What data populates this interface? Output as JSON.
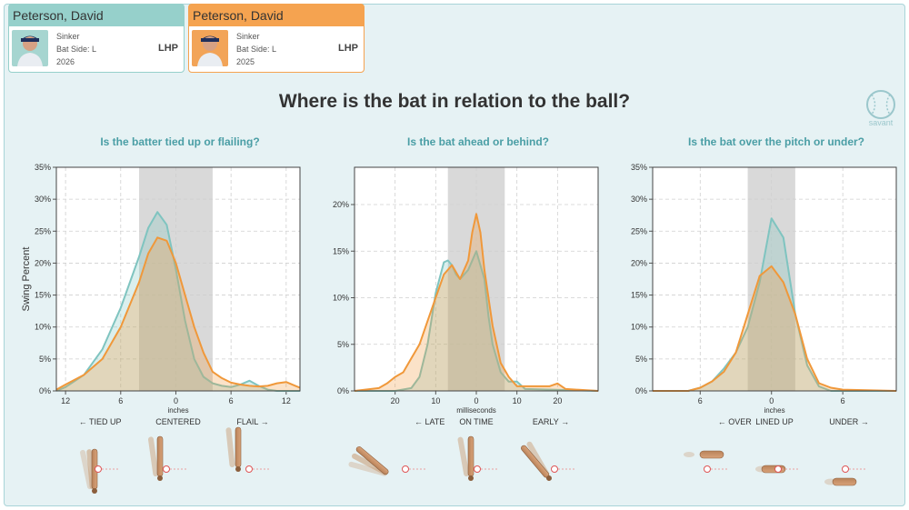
{
  "players": [
    {
      "name": "Peterson, David",
      "pitch": "Sinker",
      "bat_side": "Bat Side: L",
      "year": "2026",
      "hand": "LHP",
      "color": "#96d0cb"
    },
    {
      "name": "Peterson, David",
      "pitch": "Sinker",
      "bat_side": "Bat Side: L",
      "year": "2025",
      "hand": "LHP",
      "color": "#f5a350"
    }
  ],
  "title": "Where is the bat in relation to the ball?",
  "logo_text": "savant",
  "colors": {
    "series_2026": "#7fc4c0",
    "series_2025": "#f0983a",
    "shade": "#d9d9d9",
    "accent": "#4a9ea5"
  },
  "chart_data": [
    {
      "type": "area",
      "title": "Is the batter tied up or flailing?",
      "ylabel": "Swing Percent",
      "xunit": "inches",
      "xlim": [
        13,
        -13.5
      ],
      "ylim": [
        0,
        35
      ],
      "yticks": [
        "0%",
        "5%",
        "10%",
        "15%",
        "20%",
        "25%",
        "30%",
        "35%"
      ],
      "xticks": [
        {
          "v": 12,
          "t": "12"
        },
        {
          "v": 6,
          "t": "6"
        },
        {
          "v": 0,
          "t": "0"
        },
        {
          "v": -6,
          "t": "6"
        },
        {
          "v": -12,
          "t": "12"
        }
      ],
      "shaded": [
        4,
        -4
      ],
      "labels": {
        "left": "← TIED UP",
        "center": "CENTERED",
        "right": "FLAIL →"
      },
      "series": [
        {
          "name": "2026",
          "x": [
            13,
            12,
            10,
            8,
            6,
            4,
            3,
            2,
            1,
            0,
            -1,
            -2,
            -3,
            -4,
            -5,
            -6,
            -7,
            -8,
            -9,
            -10,
            -11,
            -13.5
          ],
          "values": [
            0,
            0.6,
            2.5,
            6.5,
            13,
            21,
            25.5,
            28,
            26,
            19,
            11,
            5,
            2.2,
            1.2,
            0.8,
            0.6,
            1,
            1.6,
            0.8,
            0.2,
            0,
            0
          ]
        },
        {
          "name": "2025",
          "x": [
            13,
            12,
            10,
            8,
            6,
            4,
            3,
            2,
            1,
            0,
            -1,
            -2,
            -3,
            -4,
            -5,
            -6,
            -7,
            -8,
            -9,
            -10,
            -11,
            -12,
            -13,
            -13.5
          ],
          "values": [
            0.2,
            1,
            2.5,
            5,
            10,
            17,
            21.5,
            24,
            23.5,
            20,
            15,
            10,
            6,
            3,
            2,
            1.3,
            1,
            0.8,
            0.7,
            0.8,
            1.2,
            1.4,
            0.8,
            0.5
          ]
        }
      ]
    },
    {
      "type": "area",
      "title": "Is the bat ahead or behind?",
      "xunit": "milliseconds",
      "xlim": [
        30,
        -30
      ],
      "ylim": [
        0,
        24
      ],
      "yticks": [
        "0%",
        "5%",
        "10%",
        "15%",
        "20%"
      ],
      "ytickvals": [
        0,
        5,
        10,
        15,
        20
      ],
      "xticks": [
        {
          "v": 20,
          "t": "20"
        },
        {
          "v": 10,
          "t": "10"
        },
        {
          "v": 0,
          "t": "0"
        },
        {
          "v": -10,
          "t": "10"
        },
        {
          "v": -20,
          "t": "20"
        }
      ],
      "shaded": [
        7,
        -7
      ],
      "labels": {
        "left": "← LATE",
        "center": "ON TIME",
        "right": "EARLY →"
      },
      "series": [
        {
          "name": "2026",
          "x": [
            30,
            20,
            16,
            14,
            12,
            10,
            8,
            7,
            6,
            5,
            4,
            2,
            0,
            -2,
            -3,
            -4,
            -6,
            -8,
            -10,
            -12,
            -30
          ],
          "values": [
            0,
            0,
            0.3,
            1.5,
            5,
            10.5,
            13.8,
            14,
            13.5,
            12.5,
            12,
            13,
            15,
            12,
            8,
            5,
            2,
            1,
            1,
            0.2,
            0
          ]
        },
        {
          "name": "2025",
          "x": [
            30,
            24,
            22,
            20,
            18,
            16,
            14,
            12,
            10,
            8,
            6,
            4,
            2,
            1,
            0,
            -1,
            -2,
            -4,
            -6,
            -8,
            -10,
            -18,
            -20,
            -22,
            -30
          ],
          "values": [
            0,
            0.3,
            0.8,
            1.5,
            2,
            3.5,
            5,
            7.5,
            10,
            12.5,
            13.5,
            12,
            14,
            17,
            19,
            17,
            13,
            7,
            3,
            1.5,
            0.5,
            0.5,
            0.8,
            0.2,
            0
          ]
        }
      ]
    },
    {
      "type": "area",
      "title": "Is the bat over the pitch or under?",
      "xunit": "inches",
      "xlim": [
        10,
        -10.5
      ],
      "ylim": [
        0,
        35
      ],
      "yticks": [
        "0%",
        "5%",
        "10%",
        "15%",
        "20%",
        "25%",
        "30%",
        "35%"
      ],
      "xticks": [
        {
          "v": 6,
          "t": "6"
        },
        {
          "v": 0,
          "t": "0"
        },
        {
          "v": -6,
          "t": "6"
        }
      ],
      "shaded": [
        2,
        -2
      ],
      "labels": {
        "left": "← OVER",
        "center": "LINED UP",
        "right": "UNDER →"
      },
      "series": [
        {
          "name": "2026",
          "x": [
            10,
            7,
            6,
            5,
            4,
            3,
            2,
            1,
            0,
            -1,
            -2,
            -3,
            -4,
            -5,
            -10.5
          ],
          "values": [
            0,
            0,
            0.5,
            1.5,
            3.5,
            6,
            10,
            17,
            27,
            24,
            12,
            4,
            0.7,
            0,
            0
          ]
        },
        {
          "name": "2025",
          "x": [
            10,
            7,
            6,
            5,
            4,
            3,
            2,
            1,
            0,
            -1,
            -2,
            -3,
            -4,
            -5,
            -6,
            -10.5
          ],
          "values": [
            0,
            0,
            0.5,
            1.5,
            3,
            6,
            12,
            18,
            19.5,
            17,
            12,
            5,
            1.2,
            0.5,
            0.2,
            0
          ]
        }
      ]
    }
  ]
}
